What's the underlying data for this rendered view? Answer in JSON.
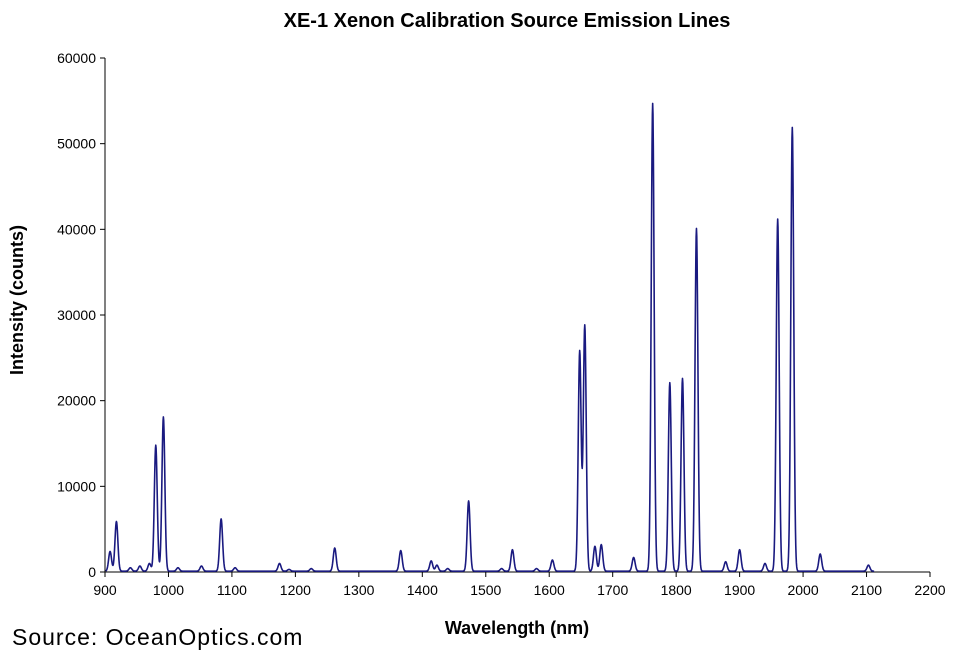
{
  "chart_data": {
    "type": "line",
    "title": "XE-1 Xenon Calibration Source Emission Lines",
    "xlabel": "Wavelength (nm)",
    "ylabel": "Intensity (counts)",
    "xlim": [
      900,
      2200
    ],
    "ylim": [
      0,
      60000
    ],
    "x_ticks": [
      900,
      1000,
      1100,
      1200,
      1300,
      1400,
      1500,
      1600,
      1700,
      1800,
      1900,
      2000,
      2100,
      2200
    ],
    "y_ticks": [
      0,
      10000,
      20000,
      30000,
      40000,
      50000,
      60000
    ],
    "grid": false,
    "legend": "none",
    "line_color": "#1a1a80",
    "baseline": 100,
    "peaks": [
      {
        "x": 908,
        "y": 2300
      },
      {
        "x": 918,
        "y": 5800
      },
      {
        "x": 940,
        "y": 400
      },
      {
        "x": 955,
        "y": 600
      },
      {
        "x": 970,
        "y": 900
      },
      {
        "x": 980,
        "y": 14700
      },
      {
        "x": 992,
        "y": 18000
      },
      {
        "x": 1015,
        "y": 400
      },
      {
        "x": 1052,
        "y": 600
      },
      {
        "x": 1083,
        "y": 6100
      },
      {
        "x": 1105,
        "y": 400
      },
      {
        "x": 1175,
        "y": 900
      },
      {
        "x": 1190,
        "y": 200
      },
      {
        "x": 1225,
        "y": 300
      },
      {
        "x": 1262,
        "y": 2700
      },
      {
        "x": 1366,
        "y": 2400
      },
      {
        "x": 1414,
        "y": 1200
      },
      {
        "x": 1423,
        "y": 700
      },
      {
        "x": 1440,
        "y": 300
      },
      {
        "x": 1473,
        "y": 8200
      },
      {
        "x": 1525,
        "y": 300
      },
      {
        "x": 1542,
        "y": 2500
      },
      {
        "x": 1580,
        "y": 300
      },
      {
        "x": 1605,
        "y": 1300
      },
      {
        "x": 1648,
        "y": 25700
      },
      {
        "x": 1656,
        "y": 28700
      },
      {
        "x": 1672,
        "y": 2900
      },
      {
        "x": 1682,
        "y": 3100
      },
      {
        "x": 1733,
        "y": 1600
      },
      {
        "x": 1763,
        "y": 54600
      },
      {
        "x": 1790,
        "y": 22000
      },
      {
        "x": 1810,
        "y": 22500
      },
      {
        "x": 1832,
        "y": 40000
      },
      {
        "x": 1878,
        "y": 1100
      },
      {
        "x": 1900,
        "y": 2500
      },
      {
        "x": 1940,
        "y": 900
      },
      {
        "x": 1960,
        "y": 41100
      },
      {
        "x": 1983,
        "y": 51800
      },
      {
        "x": 2027,
        "y": 2000
      },
      {
        "x": 2103,
        "y": 700
      }
    ]
  },
  "footer": {
    "source": "Source: OceanOptics.com"
  }
}
